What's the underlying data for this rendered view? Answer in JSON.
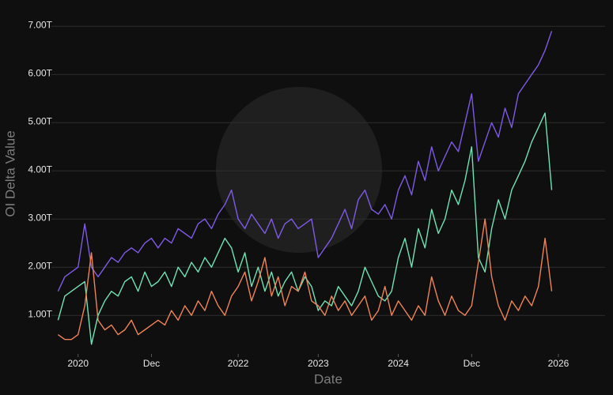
{
  "chart_data": {
    "type": "line",
    "y_label": "OI Delta Value",
    "x_label": "Date",
    "x": [
      "2019-10",
      "2019-11",
      "2019-12",
      "2020-01",
      "2020-02",
      "2020-03",
      "2020-04",
      "2020-05",
      "2020-06",
      "2020-07",
      "2020-08",
      "2020-09",
      "2020-10",
      "2020-11",
      "2020-12",
      "2021-01",
      "2021-02",
      "2021-03",
      "2021-04",
      "2021-05",
      "2021-06",
      "2021-07",
      "2021-08",
      "2021-09",
      "2021-10",
      "2021-11",
      "2021-12",
      "2022-01",
      "2022-02",
      "2022-03",
      "2022-04",
      "2022-05",
      "2022-06",
      "2022-07",
      "2022-08",
      "2022-09",
      "2022-10",
      "2022-11",
      "2022-12",
      "2023-01",
      "2023-02",
      "2023-03",
      "2023-04",
      "2023-05",
      "2023-06",
      "2023-07",
      "2023-08",
      "2023-09",
      "2023-10",
      "2023-11",
      "2023-12",
      "2024-01",
      "2024-02",
      "2024-03",
      "2024-04",
      "2024-05",
      "2024-06",
      "2024-07",
      "2024-08",
      "2024-09",
      "2024-10",
      "2024-11",
      "2024-12",
      "2025-01",
      "2025-02",
      "2025-03",
      "2025-04",
      "2025-05",
      "2025-06",
      "2025-07",
      "2025-08",
      "2025-09",
      "2025-10",
      "2025-11",
      "2025-12"
    ],
    "series": [
      {
        "color": "#7f5ae6",
        "values": [
          1.5,
          1.8,
          1.9,
          2.0,
          2.9,
          2.0,
          1.8,
          2.0,
          2.2,
          2.1,
          2.3,
          2.4,
          2.3,
          2.5,
          2.6,
          2.4,
          2.6,
          2.5,
          2.8,
          2.7,
          2.6,
          2.9,
          3.0,
          2.8,
          3.1,
          3.3,
          3.6,
          3.0,
          2.8,
          3.1,
          2.9,
          2.7,
          3.0,
          2.6,
          2.9,
          3.0,
          2.8,
          2.9,
          3.0,
          2.2,
          2.4,
          2.6,
          2.9,
          3.2,
          2.8,
          3.4,
          3.6,
          3.2,
          3.1,
          3.3,
          3.0,
          3.6,
          3.9,
          3.5,
          4.2,
          3.8,
          4.5,
          4.0,
          4.3,
          4.6,
          4.4,
          5.0,
          5.6,
          4.2,
          4.6,
          5.0,
          4.7,
          5.3,
          4.9,
          5.6,
          5.8,
          6.0,
          6.2,
          6.5,
          6.9
        ]
      },
      {
        "color": "#6fe3b4",
        "values": [
          0.9,
          1.4,
          1.5,
          1.6,
          1.7,
          0.4,
          1.0,
          1.3,
          1.5,
          1.4,
          1.7,
          1.8,
          1.5,
          1.9,
          1.6,
          1.7,
          1.9,
          1.6,
          2.0,
          1.8,
          2.1,
          1.9,
          2.2,
          2.0,
          2.3,
          2.6,
          2.4,
          1.9,
          2.3,
          1.6,
          2.0,
          1.5,
          1.9,
          1.4,
          1.7,
          1.9,
          1.5,
          1.8,
          1.6,
          1.1,
          1.3,
          1.2,
          1.6,
          1.4,
          1.2,
          1.5,
          2.0,
          1.7,
          1.4,
          1.3,
          1.5,
          2.2,
          2.6,
          2.0,
          2.8,
          2.4,
          3.2,
          2.7,
          3.0,
          3.6,
          3.3,
          3.8,
          4.5,
          2.2,
          1.9,
          2.8,
          3.4,
          3.0,
          3.6,
          3.9,
          4.2,
          4.6,
          4.9,
          5.2,
          3.6
        ]
      },
      {
        "color": "#ef8458",
        "values": [
          0.6,
          0.5,
          0.5,
          0.6,
          1.2,
          2.3,
          0.9,
          0.7,
          0.8,
          0.6,
          0.7,
          0.9,
          0.6,
          0.7,
          0.8,
          0.9,
          0.8,
          1.1,
          0.9,
          1.2,
          1.0,
          1.3,
          1.1,
          1.5,
          1.2,
          1.0,
          1.4,
          1.6,
          1.9,
          1.3,
          1.7,
          2.2,
          1.4,
          1.8,
          1.2,
          1.6,
          1.5,
          1.9,
          1.3,
          1.2,
          1.0,
          1.4,
          1.1,
          1.3,
          1.0,
          1.2,
          1.4,
          0.9,
          1.1,
          1.6,
          1.0,
          1.3,
          1.1,
          0.9,
          1.2,
          1.0,
          1.8,
          1.3,
          1.0,
          1.4,
          1.1,
          1.0,
          1.2,
          2.1,
          3.0,
          1.8,
          1.2,
          0.9,
          1.3,
          1.1,
          1.4,
          1.2,
          1.6,
          2.6,
          1.5
        ]
      }
    ],
    "xlim": [
      "2019-09",
      "2026-08"
    ],
    "xticks": [
      {
        "value": "2020-01",
        "label": "2020"
      },
      {
        "value": "2020-12",
        "label": "Dec"
      },
      {
        "value": "2022-01",
        "label": "2022"
      },
      {
        "value": "2023-01",
        "label": "2023"
      },
      {
        "value": "2024-01",
        "label": "2024"
      },
      {
        "value": "2024-12",
        "label": "Dec"
      },
      {
        "value": "2026-01",
        "label": "2026"
      }
    ],
    "ylim": [
      0.2,
      7.3
    ],
    "yticks": [
      {
        "value": 1,
        "label": "1.00T"
      },
      {
        "value": 2,
        "label": "2.00T"
      },
      {
        "value": 3,
        "label": "3.00T"
      },
      {
        "value": 4,
        "label": "4.00T"
      },
      {
        "value": 5,
        "label": "5.00T"
      },
      {
        "value": 6,
        "label": "6.00T"
      },
      {
        "value": 7,
        "label": "7.00T"
      }
    ],
    "grid": true
  }
}
